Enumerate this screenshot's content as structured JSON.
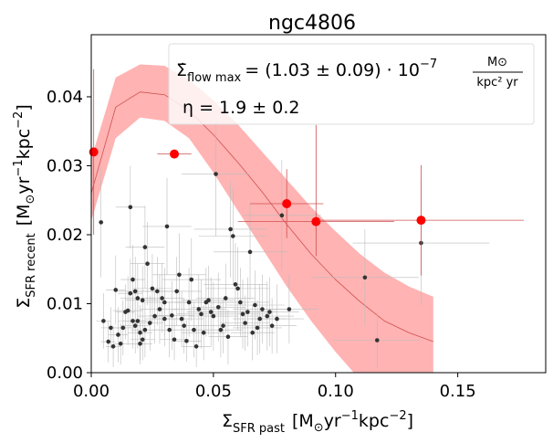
{
  "chart_data": {
    "type": "scatter",
    "title": "ngc4806",
    "xlabel": {
      "sigma": "Σ",
      "sub": "SFR past",
      "units_open": "[M",
      "units_sun": "⊙",
      "units_yr": "yr",
      "exp1": "−1",
      "units_kpc": "kpc",
      "exp2": "−2",
      "units_close": "]"
    },
    "ylabel": {
      "sigma": "Σ",
      "sub": "SFR recent",
      "units_open": "[M",
      "units_sun": "⊙",
      "units_yr": "yr",
      "exp1": "−1",
      "units_kpc": "kpc",
      "exp2": "−2",
      "units_close": "]"
    },
    "xlim": [
      0.0,
      0.186
    ],
    "ylim": [
      0.0,
      0.049
    ],
    "xticks": [
      0.0,
      0.05,
      0.1,
      0.15
    ],
    "xtick_labels": [
      "0.00",
      "0.05",
      "0.10",
      "0.15"
    ],
    "yticks": [
      0.0,
      0.01,
      0.02,
      0.03,
      0.04
    ],
    "ytick_labels": [
      "0.00",
      "0.01",
      "0.02",
      "0.03",
      "0.04"
    ],
    "annotation": {
      "sigma_dot": "Σ̇",
      "flow_sub": "flow max",
      "equals_value": "= (1.03 ± 0.09) · 10",
      "exponent": "−7",
      "frac_num": "M⊙",
      "frac_den": "kpc² yr",
      "eta": "η = 1.9 ± 0.2"
    },
    "colors": {
      "band": "#ffb3b3",
      "model_line": "#d05050",
      "binned": "#ff0000",
      "points": "#333333",
      "errorbar": "#bbbbbb"
    },
    "model_band": {
      "x": [
        0.0,
        0.01,
        0.02,
        0.03,
        0.04,
        0.05,
        0.06,
        0.07,
        0.08,
        0.09,
        0.1,
        0.11,
        0.12,
        0.13,
        0.14
      ],
      "upper": [
        0.031,
        0.0428,
        0.0447,
        0.0445,
        0.0425,
        0.0395,
        0.036,
        0.032,
        0.028,
        0.024,
        0.0205,
        0.0172,
        0.0145,
        0.0125,
        0.011
      ],
      "lower": [
        0.022,
        0.034,
        0.037,
        0.0365,
        0.034,
        0.029,
        0.0235,
        0.018,
        0.0125,
        0.0075,
        0.003,
        -0.001,
        -0.004,
        -0.006,
        -0.007
      ],
      "median": [
        0.026,
        0.0385,
        0.0407,
        0.0403,
        0.038,
        0.0345,
        0.0305,
        0.0262,
        0.0215,
        0.0172,
        0.0135,
        0.0103,
        0.0075,
        0.0058,
        0.0045
      ]
    },
    "binned_points": {
      "x": [
        0.001,
        0.034,
        0.08,
        0.092,
        0.135
      ],
      "y": [
        0.032,
        0.0317,
        0.0245,
        0.0219,
        0.0221
      ],
      "xerr": [
        0.001,
        0.007,
        0.015,
        0.032,
        0.042
      ],
      "yerr_up": [
        0.012,
        0.0005,
        0.005,
        0.014,
        0.008
      ],
      "yerr_down": [
        0.012,
        0.0005,
        0.005,
        0.005,
        0.008
      ]
    },
    "data_points": {
      "x": [
        0.004,
        0.005,
        0.007,
        0.008,
        0.009,
        0.01,
        0.011,
        0.012,
        0.013,
        0.014,
        0.015,
        0.016,
        0.016,
        0.017,
        0.017,
        0.018,
        0.018,
        0.019,
        0.019,
        0.02,
        0.02,
        0.021,
        0.021,
        0.022,
        0.022,
        0.023,
        0.024,
        0.025,
        0.026,
        0.027,
        0.028,
        0.029,
        0.03,
        0.03,
        0.031,
        0.032,
        0.033,
        0.034,
        0.035,
        0.036,
        0.037,
        0.038,
        0.039,
        0.04,
        0.041,
        0.042,
        0.043,
        0.044,
        0.045,
        0.046,
        0.047,
        0.048,
        0.049,
        0.05,
        0.051,
        0.052,
        0.053,
        0.054,
        0.055,
        0.056,
        0.057,
        0.058,
        0.059,
        0.06,
        0.061,
        0.062,
        0.063,
        0.064,
        0.065,
        0.066,
        0.067,
        0.068,
        0.069,
        0.07,
        0.072,
        0.073,
        0.074,
        0.076,
        0.078,
        0.081,
        0.112,
        0.117,
        0.135
      ],
      "y": [
        0.0218,
        0.0075,
        0.0045,
        0.0065,
        0.0038,
        0.012,
        0.0055,
        0.0042,
        0.0065,
        0.0088,
        0.009,
        0.0115,
        0.024,
        0.0075,
        0.0135,
        0.0118,
        0.0068,
        0.0108,
        0.0075,
        0.0058,
        0.0042,
        0.0105,
        0.0048,
        0.0062,
        0.0182,
        0.0158,
        0.0072,
        0.0122,
        0.0082,
        0.0118,
        0.0092,
        0.0108,
        0.0078,
        0.0102,
        0.0212,
        0.0062,
        0.0083,
        0.0048,
        0.0118,
        0.0142,
        0.0078,
        0.0068,
        0.0046,
        0.0102,
        0.0135,
        0.0062,
        0.0038,
        0.0092,
        0.0085,
        0.0058,
        0.0102,
        0.0105,
        0.0088,
        0.0082,
        0.0288,
        0.0095,
        0.0062,
        0.0068,
        0.0108,
        0.0052,
        0.0208,
        0.0198,
        0.0128,
        0.0122,
        0.0102,
        0.0085,
        0.0072,
        0.0088,
        0.0175,
        0.0058,
        0.0098,
        0.0065,
        0.0078,
        0.0092,
        0.0082,
        0.0088,
        0.0068,
        0.0078,
        0.0228,
        0.0092,
        0.0138,
        0.0047,
        0.0188
      ],
      "xerr": [
        0.001,
        0.003,
        0.003,
        0.004,
        0.003,
        0.004,
        0.004,
        0.003,
        0.005,
        0.004,
        0.006,
        0.005,
        0.006,
        0.006,
        0.005,
        0.008,
        0.006,
        0.007,
        0.006,
        0.005,
        0.005,
        0.007,
        0.005,
        0.006,
        0.008,
        0.007,
        0.006,
        0.008,
        0.007,
        0.009,
        0.008,
        0.009,
        0.008,
        0.01,
        0.01,
        0.007,
        0.009,
        0.006,
        0.01,
        0.011,
        0.009,
        0.008,
        0.006,
        0.01,
        0.012,
        0.009,
        0.006,
        0.011,
        0.01,
        0.009,
        0.012,
        0.011,
        0.01,
        0.01,
        0.014,
        0.011,
        0.009,
        0.01,
        0.012,
        0.008,
        0.015,
        0.014,
        0.013,
        0.013,
        0.012,
        0.011,
        0.01,
        0.012,
        0.015,
        0.009,
        0.012,
        0.01,
        0.011,
        0.012,
        0.011,
        0.012,
        0.01,
        0.011,
        0.016,
        0.012,
        0.022,
        0.018,
        0.028
      ],
      "yerr": [
        0.008,
        0.004,
        0.003,
        0.003,
        0.003,
        0.005,
        0.004,
        0.003,
        0.004,
        0.004,
        0.005,
        0.005,
        0.006,
        0.004,
        0.005,
        0.005,
        0.004,
        0.005,
        0.004,
        0.004,
        0.003,
        0.005,
        0.003,
        0.004,
        0.006,
        0.006,
        0.004,
        0.005,
        0.004,
        0.005,
        0.005,
        0.005,
        0.004,
        0.005,
        0.007,
        0.004,
        0.005,
        0.003,
        0.005,
        0.006,
        0.004,
        0.004,
        0.003,
        0.005,
        0.006,
        0.004,
        0.003,
        0.005,
        0.005,
        0.004,
        0.005,
        0.005,
        0.005,
        0.005,
        0.009,
        0.005,
        0.004,
        0.004,
        0.005,
        0.004,
        0.007,
        0.007,
        0.006,
        0.006,
        0.005,
        0.005,
        0.004,
        0.005,
        0.007,
        0.004,
        0.005,
        0.004,
        0.005,
        0.005,
        0.005,
        0.005,
        0.004,
        0.005,
        0.008,
        0.005,
        0.007,
        0.004,
        0.009
      ]
    }
  }
}
